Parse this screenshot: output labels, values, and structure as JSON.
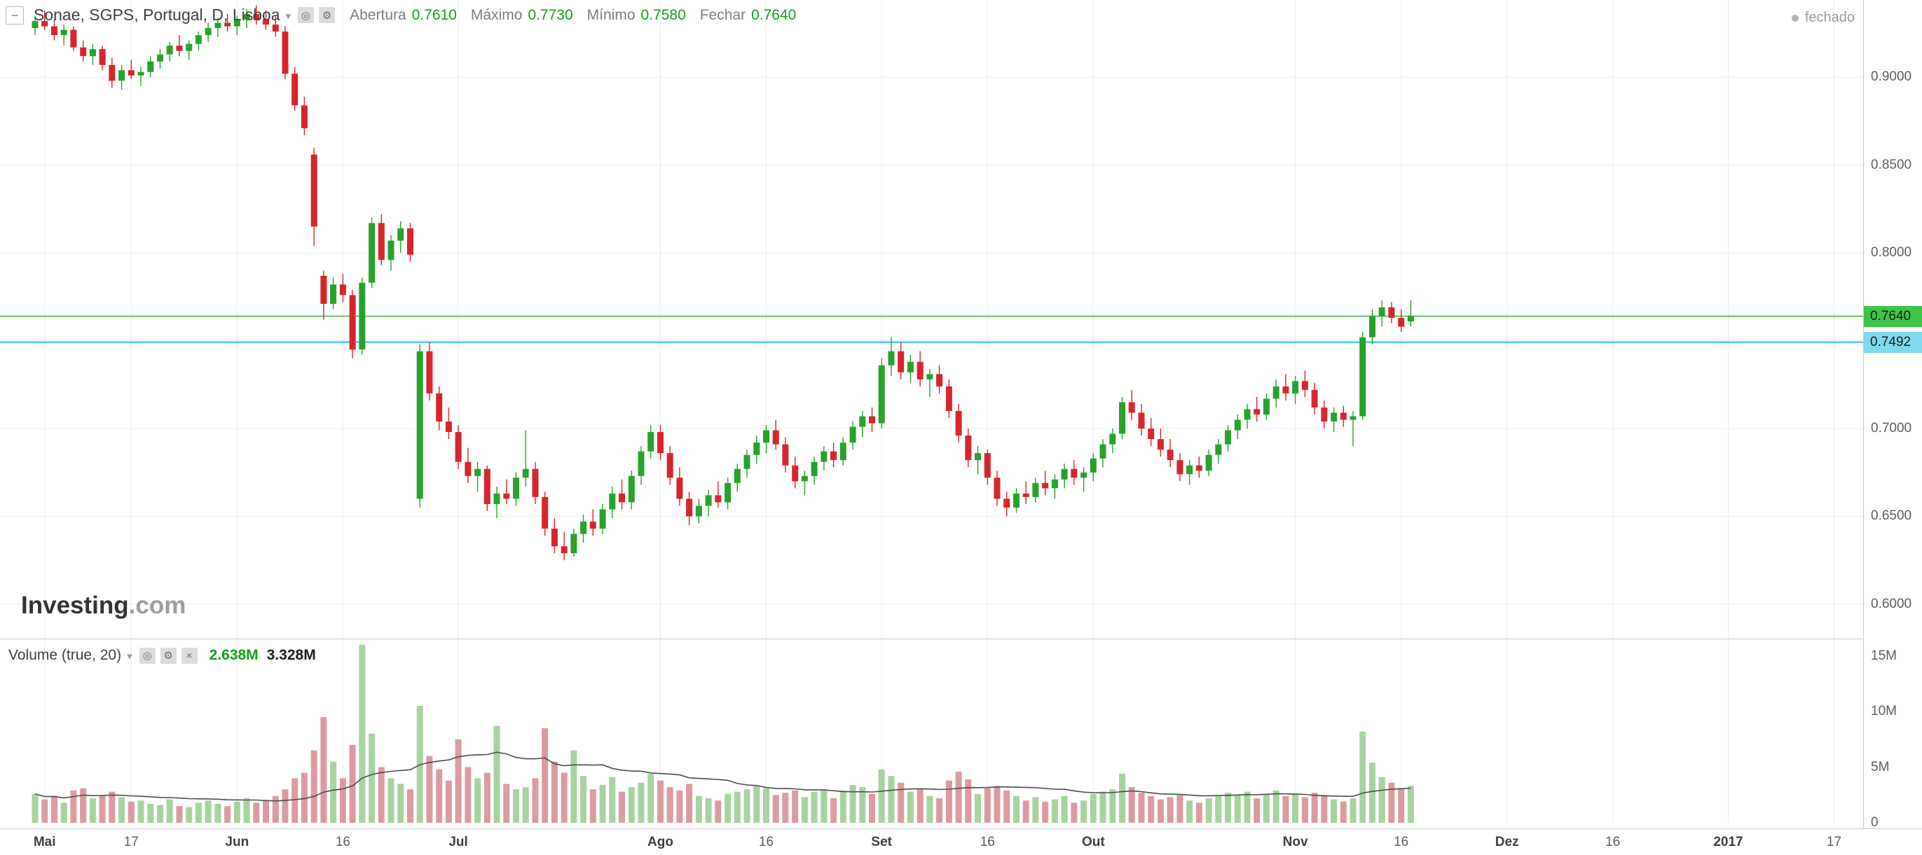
{
  "header": {
    "collapse_icon": "−",
    "symbol_title": "Sonae, SGPS, Portugal, D, Lisboa",
    "dropdown_icon": "▾",
    "icons": {
      "hide": "◎",
      "settings": "⚙"
    },
    "legend": {
      "open_label": "Abertura",
      "open_value": "0.7610",
      "high_label": "Máximo",
      "high_value": "0.7730",
      "low_label": "Mínimo",
      "low_value": "0.7580",
      "close_label": "Fechar",
      "close_value": "0.7640"
    },
    "market_status_label": "fechado"
  },
  "watermark": {
    "brand": "Investing",
    "suffix": ".com"
  },
  "volume_pane": {
    "indicator_label": "Volume (true, 20)",
    "dropdown_icon": "▾",
    "icons": {
      "hide": "◎",
      "settings": "⚙",
      "close": "×"
    },
    "ma_value": "2.638M",
    "volume_value": "3.328M",
    "axis_ticks": [
      {
        "label": "15M",
        "value": 15
      },
      {
        "label": "10M",
        "value": 10
      },
      {
        "label": "5M",
        "value": 5
      },
      {
        "label": "0",
        "value": 0
      }
    ]
  },
  "price_axis": {
    "ticks": [
      {
        "label": "0.9000",
        "value": 0.9
      },
      {
        "label": "0.8500",
        "value": 0.85
      },
      {
        "label": "0.8000",
        "value": 0.8
      },
      {
        "label": "0.7000",
        "value": 0.7
      },
      {
        "label": "0.6500",
        "value": 0.65
      },
      {
        "label": "0.6000",
        "value": 0.6
      }
    ],
    "last_price_tag": {
      "label": "0.7640",
      "value": 0.764
    },
    "level_tag": {
      "label": "0.7492",
      "value": 0.7492
    }
  },
  "colors": {
    "up": "#27a22b",
    "down": "#d7252c",
    "vol_up": "#a7d3a0",
    "vol_down": "#dc9ba0",
    "grid": "#ececec",
    "axis_text": "#5d5d5d",
    "value_green": "#11a017",
    "last_price_line": "#33b333",
    "last_price_tag_bg": "#3ec546",
    "level_line": "#29c4e8",
    "level_tag_bg": "#7fd9ee",
    "vol_ma_line": "#4d4d4d",
    "status_gray": "#9b9b9b"
  },
  "chart_data": {
    "type": "candlestick",
    "title": "Sonae, SGPS, Portugal, D, Lisboa",
    "timeframe": "D",
    "ylim": [
      0.58,
      0.944
    ],
    "price_gridlines": [
      0.6,
      0.65,
      0.7,
      0.75,
      0.8,
      0.85,
      0.9
    ],
    "levels": {
      "last_price": 0.764,
      "horizontal_line": 0.7492
    },
    "ohlc_last": {
      "open": 0.761,
      "high": 0.773,
      "low": 0.758,
      "close": 0.764
    },
    "volume_ma_period": 20,
    "volume_ma_last": 2.638,
    "volume_last": 3.328,
    "x_ticks": [
      {
        "i": 1,
        "label": "Mai"
      },
      {
        "i": 10,
        "label": "17"
      },
      {
        "i": 21,
        "label": "Jun"
      },
      {
        "i": 32,
        "label": "16"
      },
      {
        "i": 44,
        "label": "Jul"
      },
      {
        "i": 65,
        "label": "Ago"
      },
      {
        "i": 76,
        "label": "16"
      },
      {
        "i": 88,
        "label": "Set"
      },
      {
        "i": 99,
        "label": "16"
      },
      {
        "i": 110,
        "label": "Out"
      },
      {
        "i": 131,
        "label": "Nov"
      },
      {
        "i": 142,
        "label": "16"
      },
      {
        "i": 153,
        "label": "Dez"
      },
      {
        "i": 164,
        "label": "16"
      },
      {
        "i": 176,
        "label": "2017"
      },
      {
        "i": 187,
        "label": "17"
      }
    ],
    "candles": [
      [
        0.928,
        0.935,
        0.924,
        0.932,
        2.6
      ],
      [
        0.932,
        0.938,
        0.927,
        0.929,
        2.1
      ],
      [
        0.929,
        0.933,
        0.921,
        0.924,
        2.4
      ],
      [
        0.924,
        0.93,
        0.918,
        0.927,
        1.8
      ],
      [
        0.927,
        0.929,
        0.915,
        0.917,
        2.9
      ],
      [
        0.917,
        0.921,
        0.909,
        0.912,
        3.1
      ],
      [
        0.912,
        0.919,
        0.907,
        0.916,
        2.2
      ],
      [
        0.916,
        0.918,
        0.904,
        0.907,
        2.5
      ],
      [
        0.907,
        0.911,
        0.894,
        0.898,
        2.8
      ],
      [
        0.898,
        0.907,
        0.893,
        0.904,
        2.3
      ],
      [
        0.904,
        0.91,
        0.899,
        0.901,
        1.9
      ],
      [
        0.901,
        0.906,
        0.895,
        0.903,
        2.0
      ],
      [
        0.903,
        0.912,
        0.9,
        0.909,
        1.7
      ],
      [
        0.909,
        0.916,
        0.905,
        0.913,
        1.6
      ],
      [
        0.913,
        0.92,
        0.909,
        0.918,
        2.1
      ],
      [
        0.918,
        0.924,
        0.912,
        0.915,
        1.5
      ],
      [
        0.915,
        0.921,
        0.91,
        0.919,
        1.4
      ],
      [
        0.919,
        0.926,
        0.915,
        0.924,
        1.8
      ],
      [
        0.924,
        0.931,
        0.92,
        0.928,
        2.0
      ],
      [
        0.928,
        0.934,
        0.923,
        0.931,
        1.7
      ],
      [
        0.931,
        0.936,
        0.926,
        0.929,
        1.5
      ],
      [
        0.929,
        0.935,
        0.924,
        0.933,
        1.9
      ],
      [
        0.933,
        0.939,
        0.928,
        0.936,
        2.2
      ],
      [
        0.936,
        0.941,
        0.93,
        0.933,
        1.8
      ],
      [
        0.933,
        0.938,
        0.927,
        0.93,
        2.0
      ],
      [
        0.93,
        0.935,
        0.923,
        0.926,
        2.4
      ],
      [
        0.926,
        0.929,
        0.899,
        0.902,
        3.0
      ],
      [
        0.902,
        0.906,
        0.881,
        0.884,
        4.0
      ],
      [
        0.884,
        0.889,
        0.867,
        0.871,
        4.5
      ],
      [
        0.856,
        0.86,
        0.804,
        0.815,
        6.5
      ],
      [
        0.787,
        0.79,
        0.762,
        0.771,
        9.5
      ],
      [
        0.771,
        0.786,
        0.768,
        0.782,
        5.5
      ],
      [
        0.782,
        0.788,
        0.772,
        0.776,
        4.0
      ],
      [
        0.776,
        0.779,
        0.74,
        0.745,
        7.0
      ],
      [
        0.745,
        0.786,
        0.742,
        0.783,
        16.0
      ],
      [
        0.783,
        0.82,
        0.78,
        0.817,
        8.0
      ],
      [
        0.817,
        0.822,
        0.793,
        0.796,
        5.0
      ],
      [
        0.796,
        0.81,
        0.79,
        0.807,
        4.0
      ],
      [
        0.807,
        0.818,
        0.8,
        0.814,
        3.5
      ],
      [
        0.814,
        0.817,
        0.795,
        0.799,
        3.0
      ],
      [
        0.66,
        0.748,
        0.655,
        0.744,
        10.5
      ],
      [
        0.744,
        0.749,
        0.716,
        0.72,
        6.0
      ],
      [
        0.72,
        0.724,
        0.699,
        0.704,
        4.8
      ],
      [
        0.704,
        0.712,
        0.694,
        0.698,
        3.8
      ],
      [
        0.698,
        0.702,
        0.677,
        0.681,
        7.5
      ],
      [
        0.681,
        0.689,
        0.669,
        0.673,
        5.0
      ],
      [
        0.673,
        0.681,
        0.664,
        0.677,
        4.0
      ],
      [
        0.677,
        0.679,
        0.653,
        0.657,
        4.5
      ],
      [
        0.657,
        0.667,
        0.649,
        0.663,
        8.7
      ],
      [
        0.663,
        0.671,
        0.657,
        0.66,
        3.5
      ],
      [
        0.66,
        0.675,
        0.656,
        0.672,
        3.0
      ],
      [
        0.672,
        0.699,
        0.667,
        0.677,
        3.2
      ],
      [
        0.677,
        0.681,
        0.657,
        0.661,
        4.0
      ],
      [
        0.661,
        0.664,
        0.639,
        0.643,
        8.5
      ],
      [
        0.643,
        0.649,
        0.629,
        0.633,
        5.5
      ],
      [
        0.633,
        0.641,
        0.625,
        0.629,
        4.5
      ],
      [
        0.629,
        0.643,
        0.627,
        0.64,
        6.5
      ],
      [
        0.64,
        0.651,
        0.635,
        0.647,
        4.2
      ],
      [
        0.647,
        0.654,
        0.639,
        0.643,
        3.0
      ],
      [
        0.643,
        0.657,
        0.64,
        0.654,
        3.4
      ],
      [
        0.654,
        0.667,
        0.649,
        0.663,
        4.1
      ],
      [
        0.663,
        0.671,
        0.654,
        0.658,
        2.8
      ],
      [
        0.658,
        0.676,
        0.654,
        0.673,
        3.2
      ],
      [
        0.673,
        0.69,
        0.668,
        0.687,
        3.6
      ],
      [
        0.687,
        0.702,
        0.683,
        0.698,
        4.4
      ],
      [
        0.698,
        0.702,
        0.682,
        0.686,
        3.8
      ],
      [
        0.686,
        0.69,
        0.668,
        0.672,
        3.2
      ],
      [
        0.672,
        0.678,
        0.656,
        0.66,
        2.9
      ],
      [
        0.66,
        0.664,
        0.645,
        0.65,
        3.5
      ],
      [
        0.65,
        0.66,
        0.646,
        0.656,
        2.4
      ],
      [
        0.656,
        0.665,
        0.65,
        0.662,
        2.2
      ],
      [
        0.662,
        0.67,
        0.655,
        0.658,
        2.0
      ],
      [
        0.658,
        0.672,
        0.654,
        0.669,
        2.6
      ],
      [
        0.669,
        0.68,
        0.664,
        0.677,
        2.8
      ],
      [
        0.677,
        0.688,
        0.672,
        0.685,
        3.0
      ],
      [
        0.685,
        0.696,
        0.68,
        0.692,
        3.3
      ],
      [
        0.692,
        0.702,
        0.686,
        0.699,
        3.1
      ],
      [
        0.699,
        0.705,
        0.688,
        0.691,
        2.5
      ],
      [
        0.691,
        0.695,
        0.675,
        0.679,
        2.7
      ],
      [
        0.679,
        0.684,
        0.666,
        0.67,
        2.9
      ],
      [
        0.67,
        0.676,
        0.662,
        0.673,
        2.3
      ],
      [
        0.673,
        0.684,
        0.668,
        0.681,
        2.8
      ],
      [
        0.681,
        0.69,
        0.676,
        0.687,
        3.0
      ],
      [
        0.687,
        0.692,
        0.678,
        0.682,
        2.2
      ],
      [
        0.682,
        0.695,
        0.679,
        0.692,
        2.9
      ],
      [
        0.692,
        0.704,
        0.688,
        0.701,
        3.4
      ],
      [
        0.701,
        0.71,
        0.695,
        0.707,
        3.2
      ],
      [
        0.707,
        0.712,
        0.698,
        0.703,
        2.6
      ],
      [
        0.703,
        0.74,
        0.7,
        0.736,
        4.8
      ],
      [
        0.736,
        0.752,
        0.73,
        0.744,
        4.2
      ],
      [
        0.744,
        0.749,
        0.728,
        0.732,
        3.6
      ],
      [
        0.732,
        0.742,
        0.726,
        0.738,
        2.8
      ],
      [
        0.738,
        0.744,
        0.724,
        0.728,
        3.0
      ],
      [
        0.728,
        0.734,
        0.718,
        0.731,
        2.4
      ],
      [
        0.731,
        0.736,
        0.72,
        0.724,
        2.2
      ],
      [
        0.724,
        0.728,
        0.706,
        0.71,
        3.8
      ],
      [
        0.71,
        0.714,
        0.692,
        0.696,
        4.6
      ],
      [
        0.696,
        0.7,
        0.678,
        0.682,
        3.9
      ],
      [
        0.682,
        0.69,
        0.674,
        0.686,
        2.6
      ],
      [
        0.686,
        0.688,
        0.668,
        0.672,
        3.1
      ],
      [
        0.672,
        0.676,
        0.656,
        0.66,
        3.3
      ],
      [
        0.66,
        0.664,
        0.65,
        0.655,
        2.9
      ],
      [
        0.655,
        0.666,
        0.652,
        0.663,
        2.4
      ],
      [
        0.663,
        0.67,
        0.657,
        0.661,
        2.0
      ],
      [
        0.661,
        0.672,
        0.658,
        0.669,
        2.3
      ],
      [
        0.669,
        0.676,
        0.662,
        0.666,
        1.9
      ],
      [
        0.666,
        0.674,
        0.66,
        0.671,
        2.1
      ],
      [
        0.671,
        0.68,
        0.666,
        0.677,
        2.4
      ],
      [
        0.677,
        0.682,
        0.668,
        0.672,
        1.8
      ],
      [
        0.672,
        0.678,
        0.664,
        0.675,
        2.0
      ],
      [
        0.675,
        0.686,
        0.67,
        0.683,
        2.6
      ],
      [
        0.683,
        0.694,
        0.678,
        0.691,
        2.8
      ],
      [
        0.691,
        0.7,
        0.686,
        0.697,
        3.0
      ],
      [
        0.697,
        0.718,
        0.694,
        0.715,
        4.4
      ],
      [
        0.715,
        0.722,
        0.705,
        0.709,
        3.2
      ],
      [
        0.709,
        0.714,
        0.696,
        0.7,
        2.7
      ],
      [
        0.7,
        0.706,
        0.69,
        0.694,
        2.4
      ],
      [
        0.694,
        0.7,
        0.684,
        0.688,
        2.1
      ],
      [
        0.688,
        0.694,
        0.678,
        0.682,
        2.3
      ],
      [
        0.682,
        0.686,
        0.67,
        0.674,
        2.5
      ],
      [
        0.674,
        0.682,
        0.668,
        0.679,
        2.0
      ],
      [
        0.679,
        0.684,
        0.672,
        0.676,
        1.8
      ],
      [
        0.676,
        0.688,
        0.673,
        0.685,
        2.2
      ],
      [
        0.685,
        0.694,
        0.68,
        0.691,
        2.4
      ],
      [
        0.691,
        0.702,
        0.687,
        0.699,
        2.7
      ],
      [
        0.699,
        0.708,
        0.694,
        0.705,
        2.5
      ],
      [
        0.705,
        0.714,
        0.7,
        0.711,
        2.8
      ],
      [
        0.711,
        0.718,
        0.704,
        0.708,
        2.2
      ],
      [
        0.708,
        0.72,
        0.705,
        0.717,
        2.6
      ],
      [
        0.717,
        0.728,
        0.712,
        0.724,
        2.9
      ],
      [
        0.724,
        0.731,
        0.716,
        0.72,
        2.4
      ],
      [
        0.72,
        0.73,
        0.714,
        0.727,
        2.6
      ],
      [
        0.727,
        0.733,
        0.718,
        0.722,
        2.3
      ],
      [
        0.722,
        0.726,
        0.708,
        0.712,
        2.7
      ],
      [
        0.712,
        0.716,
        0.7,
        0.704,
        2.5
      ],
      [
        0.704,
        0.712,
        0.698,
        0.709,
        2.1
      ],
      [
        0.709,
        0.713,
        0.701,
        0.705,
        1.9
      ],
      [
        0.705,
        0.71,
        0.69,
        0.707,
        2.2
      ],
      [
        0.707,
        0.755,
        0.705,
        0.752,
        8.2
      ],
      [
        0.752,
        0.768,
        0.748,
        0.764,
        5.4
      ],
      [
        0.764,
        0.773,
        0.758,
        0.769,
        4.1
      ],
      [
        0.769,
        0.772,
        0.76,
        0.763,
        3.6
      ],
      [
        0.763,
        0.768,
        0.755,
        0.758,
        3.1
      ],
      [
        0.761,
        0.773,
        0.758,
        0.764,
        3.328
      ]
    ]
  }
}
